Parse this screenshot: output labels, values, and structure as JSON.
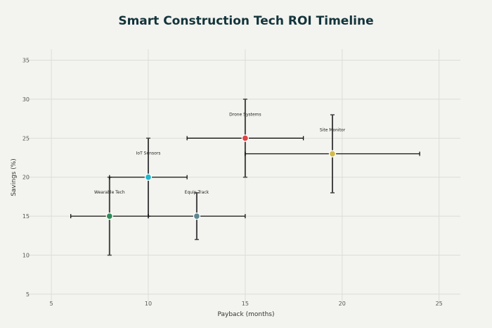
{
  "chart_data": {
    "type": "scatter",
    "title": "Smart Construction Tech ROI Timeline",
    "xlabel": "Payback (months)",
    "ylabel": "Savings (%)",
    "xlim": [
      3.8,
      26.1
    ],
    "ylim": [
      4,
      35.5
    ],
    "xticks": [
      5,
      10,
      15,
      20,
      25
    ],
    "yticks": [
      5,
      10,
      15,
      20,
      25,
      30,
      35
    ],
    "grid": true,
    "points": [
      {
        "name": "Wearable Tech",
        "x": 8,
        "y": 15,
        "x_err": 2,
        "y_err": 5,
        "color": "#2e8b57"
      },
      {
        "name": "IoT Sensors",
        "x": 10,
        "y": 20,
        "x_err": 2,
        "y_err": 5,
        "color": "#1fb8cd"
      },
      {
        "name": "Equip Track",
        "x": 12.5,
        "y": 15,
        "x_err": 2.5,
        "y_err": 3,
        "color": "#5d878f"
      },
      {
        "name": "Drone Systems",
        "x": 15,
        "y": 25,
        "x_err": 3,
        "y_err": 5,
        "color": "#db4545"
      },
      {
        "name": "Site Monitor",
        "x": 19.5,
        "y": 23,
        "x_err": 4.5,
        "y_err": 5,
        "color": "#d2ba4c"
      }
    ]
  }
}
